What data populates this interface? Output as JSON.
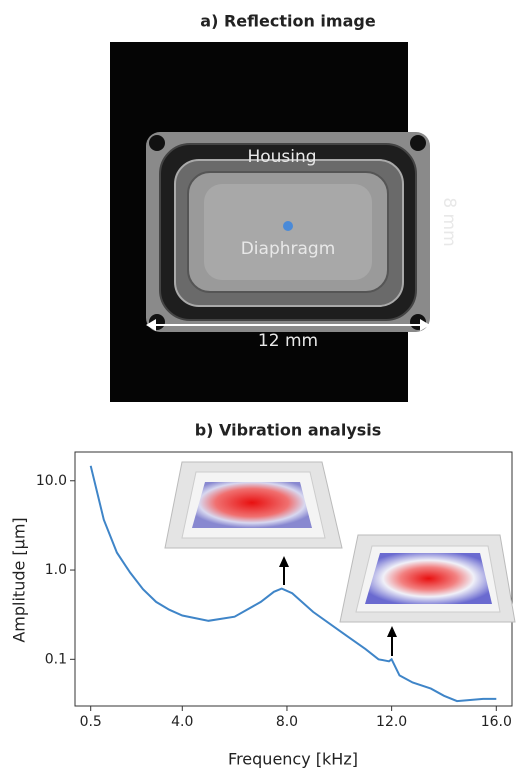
{
  "image_panel": {
    "title": "a) Reflection image",
    "housing_label": "Housing",
    "diaphragm_label": "Diaphragm",
    "height_label": "8 mm",
    "width_label": "12 mm"
  },
  "chart_data": {
    "type": "line",
    "title": "b) Vibration analysis",
    "x_label": "Frequency [kHz]",
    "y_label": "Amplitude [µm]",
    "log_y": true,
    "color": "#3f85c8",
    "x": [
      0.5,
      1.0,
      1.5,
      2.0,
      2.5,
      3.0,
      3.5,
      4.0,
      5.0,
      6.0,
      7.0,
      7.5,
      7.8,
      8.2,
      9.0,
      10.0,
      11.0,
      11.5,
      11.9,
      12.0,
      12.3,
      12.8,
      13.5,
      14.0,
      14.5,
      15.0,
      15.5,
      16.0
    ],
    "values": [
      14.7,
      3.66,
      1.57,
      0.94,
      0.61,
      0.44,
      0.36,
      0.31,
      0.27,
      0.3,
      0.44,
      0.57,
      0.62,
      0.55,
      0.34,
      0.21,
      0.13,
      0.1,
      0.095,
      0.1,
      0.066,
      0.055,
      0.047,
      0.039,
      0.034,
      0.035,
      0.036,
      0.036
    ],
    "xlim": [
      -0.1,
      16.6
    ],
    "ylim": [
      0.03,
      21
    ],
    "xticks": [
      0.5,
      {
        "value": 4,
        "label": "4.0"
      },
      {
        "value": 8,
        "label": "8.0"
      },
      {
        "value": 12,
        "label": "12.0"
      },
      {
        "value": 16,
        "label": "16.0"
      }
    ],
    "yticks": [
      0.1,
      {
        "value": 1,
        "label": "1.0"
      },
      {
        "value": 10,
        "label": "10.0"
      }
    ]
  }
}
